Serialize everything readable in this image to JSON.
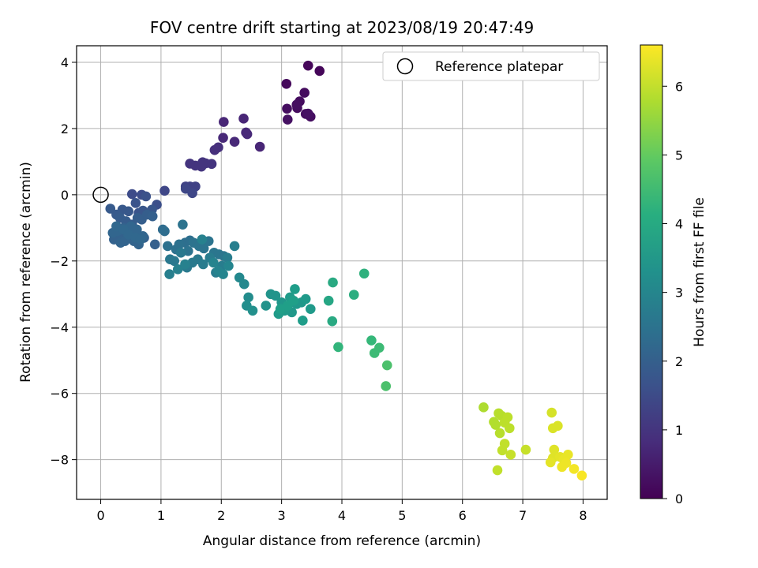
{
  "chart_data": {
    "type": "scatter",
    "title": "FOV centre drift starting at 2023/08/19 20:47:49",
    "xlabel": "Angular distance from reference (arcmin)",
    "ylabel": "Rotation from reference (arcmin)",
    "xlim": [
      -0.4,
      8.4
    ],
    "ylim": [
      -9.2,
      4.5
    ],
    "xticks": [
      "0",
      "1",
      "2",
      "3",
      "4",
      "5",
      "6",
      "7",
      "8"
    ],
    "xtick_values": [
      0,
      1,
      2,
      3,
      4,
      5,
      6,
      7,
      8
    ],
    "yticks": [
      "−8",
      "−6",
      "−4",
      "−2",
      "0",
      "2",
      "4"
    ],
    "ytick_values": [
      -8,
      -6,
      -4,
      -2,
      0,
      2,
      4
    ],
    "grid": true,
    "legend": {
      "position": "upper right",
      "label": "Reference platepar"
    },
    "reference_point": {
      "x": 0,
      "y": 0
    },
    "colorbar": {
      "label": "Hours from first FF file",
      "colormap": "viridis",
      "range": [
        0,
        6.6
      ],
      "ticks": [
        "0",
        "1",
        "2",
        "3",
        "4",
        "5",
        "6"
      ],
      "tick_values": [
        0,
        1,
        2,
        3,
        4,
        5,
        6
      ]
    },
    "series": [
      {
        "x": [
          3.44,
          3.63,
          3.08,
          3.38,
          3.3,
          3.26,
          3.09,
          3.25,
          3.4,
          3.48,
          3.1,
          3.44,
          2.04,
          2.37,
          2.03,
          2.41,
          2.43,
          2.22,
          2.64,
          1.89,
          1.95,
          1.74,
          1.48,
          1.57,
          1.67,
          1.84,
          1.69,
          1.41,
          1.57,
          1.48,
          1.06,
          1.41,
          1.52
        ],
        "y": [
          3.9,
          3.74,
          3.35,
          3.08,
          2.82,
          2.62,
          2.6,
          2.72,
          2.44,
          2.36,
          2.27,
          2.45,
          2.2,
          2.3,
          1.72,
          1.88,
          1.83,
          1.6,
          1.45,
          1.35,
          1.43,
          0.95,
          0.94,
          0.88,
          0.85,
          0.93,
          0.98,
          0.25,
          0.25,
          0.25,
          0.12,
          0.18,
          0.05
        ],
        "c": [
          0.1,
          0.1,
          0.15,
          0.2,
          0.2,
          0.2,
          0.25,
          0.25,
          0.25,
          0.25,
          0.3,
          0.3,
          0.7,
          0.7,
          0.75,
          0.75,
          0.75,
          0.75,
          0.7,
          0.9,
          0.9,
          1.0,
          1.0,
          1.0,
          1.0,
          1.0,
          1.0,
          1.3,
          1.3,
          1.3,
          1.4,
          1.4,
          1.4
        ]
      },
      {
        "x": [
          0.52,
          0.68,
          0.93,
          0.75,
          0.58,
          0.63,
          0.7,
          0.85,
          0.46,
          0.36,
          0.16,
          0.26,
          0.32,
          0.42,
          0.52,
          0.61,
          0.68,
          0.77,
          0.86,
          0.9,
          0.72,
          0.58,
          0.5,
          0.38,
          0.3,
          0.22,
          0.45,
          0.55,
          0.63,
          0.33,
          0.4,
          0.28,
          0.5,
          0.6,
          0.7,
          0.2,
          0.26,
          0.38,
          0.46,
          0.58,
          0.66
        ],
        "y": [
          0.02,
          0.0,
          -0.3,
          -0.05,
          -0.25,
          -0.55,
          -0.48,
          -0.45,
          -0.5,
          -0.45,
          -0.42,
          -0.6,
          -0.7,
          -0.8,
          -0.9,
          -0.7,
          -0.75,
          -0.6,
          -0.65,
          -1.5,
          -1.3,
          -1.2,
          -1.1,
          -1.0,
          -1.2,
          -1.35,
          -1.25,
          -1.4,
          -1.5,
          -1.45,
          -1.4,
          -1.1,
          -0.95,
          -1.05,
          -1.25,
          -1.15,
          -0.95,
          -1.05,
          -1.2,
          -1.3,
          -1.35
        ],
        "c": [
          1.5,
          1.55,
          1.6,
          1.65,
          1.7,
          1.7,
          1.75,
          1.75,
          1.8,
          1.8,
          1.85,
          1.85,
          1.9,
          1.9,
          1.9,
          1.95,
          1.95,
          1.95,
          2.0,
          2.0,
          2.0,
          2.0,
          2.05,
          2.05,
          2.05,
          2.05,
          2.1,
          2.1,
          2.1,
          2.1,
          2.1,
          2.15,
          2.15,
          2.15,
          2.15,
          2.15,
          2.2,
          2.2,
          2.2,
          2.2,
          2.2
        ]
      },
      {
        "x": [
          1.03,
          1.06,
          1.4,
          1.48,
          1.11,
          1.25,
          1.3,
          1.36,
          1.45,
          1.54,
          1.63,
          1.71,
          1.79,
          1.88,
          1.96,
          2.04,
          1.15,
          1.22,
          1.33,
          1.43,
          1.52,
          1.61,
          1.7,
          1.81,
          1.91,
          2.01,
          2.1,
          2.22,
          1.14,
          1.28,
          1.4,
          1.68,
          1.87,
          1.95,
          2.03,
          2.12,
          2.3,
          2.38,
          2.45,
          2.42,
          2.52,
          2.74,
          2.82,
          2.9,
          3.0,
          3.1,
          3.17,
          3.25,
          3.33,
          3.4,
          3.48,
          2.95,
          3.05,
          3.14,
          3.22,
          3.35,
          2.98,
          3.1,
          3.2
        ],
        "y": [
          -1.05,
          -1.1,
          -1.45,
          -1.38,
          -1.55,
          -1.65,
          -1.5,
          -0.9,
          -1.7,
          -1.45,
          -1.55,
          -1.62,
          -1.4,
          -1.75,
          -1.8,
          -1.85,
          -1.95,
          -2.0,
          -1.75,
          -2.2,
          -2.05,
          -1.95,
          -2.1,
          -1.9,
          -2.35,
          -2.15,
          -1.9,
          -1.55,
          -2.4,
          -2.25,
          -2.1,
          -1.35,
          -2.05,
          -2.3,
          -2.4,
          -2.15,
          -2.5,
          -2.7,
          -3.1,
          -3.35,
          -3.5,
          -3.35,
          -3.0,
          -3.05,
          -3.25,
          -3.4,
          -3.55,
          -3.3,
          -3.25,
          -3.15,
          -3.45,
          -3.6,
          -3.5,
          -3.1,
          -2.85,
          -3.8,
          -3.45,
          -3.35,
          -3.2
        ],
        "c": [
          2.3,
          2.35,
          2.4,
          2.4,
          2.45,
          2.45,
          2.45,
          2.5,
          2.5,
          2.5,
          2.55,
          2.55,
          2.55,
          2.6,
          2.6,
          2.6,
          2.65,
          2.65,
          2.65,
          2.7,
          2.7,
          2.7,
          2.75,
          2.75,
          2.75,
          2.8,
          2.8,
          2.85,
          2.85,
          2.9,
          2.9,
          2.9,
          2.95,
          2.95,
          3.0,
          3.0,
          3.1,
          3.1,
          3.2,
          3.25,
          3.3,
          3.35,
          3.4,
          3.4,
          3.45,
          3.45,
          3.5,
          3.5,
          3.5,
          3.55,
          3.55,
          3.6,
          3.6,
          3.6,
          3.65,
          3.65,
          3.7,
          3.7,
          3.7
        ]
      },
      {
        "x": [
          3.78,
          3.85,
          3.84,
          4.2,
          4.37,
          3.94,
          4.49,
          4.54,
          4.62,
          4.75,
          4.73
        ],
        "y": [
          -3.2,
          -2.65,
          -3.82,
          -3.02,
          -2.38,
          -4.6,
          -4.4,
          -4.78,
          -4.62,
          -5.15,
          -5.78
        ],
        "c": [
          3.9,
          4.0,
          4.0,
          4.1,
          4.2,
          4.3,
          4.4,
          4.5,
          4.5,
          4.7,
          4.7
        ]
      },
      {
        "x": [
          6.35,
          6.52,
          6.55,
          6.6,
          6.65,
          6.62,
          6.7,
          6.75,
          6.78,
          6.66,
          6.7,
          6.58,
          6.8,
          7.05
        ],
        "y": [
          -6.42,
          -6.86,
          -6.95,
          -6.6,
          -6.68,
          -7.2,
          -6.88,
          -6.72,
          -7.05,
          -7.72,
          -7.52,
          -8.32,
          -7.85,
          -7.7
        ],
        "c": [
          5.8,
          5.85,
          5.85,
          5.9,
          5.9,
          5.9,
          5.95,
          5.95,
          5.95,
          6.0,
          6.0,
          6.0,
          6.05,
          6.05
        ]
      },
      {
        "x": [
          7.48,
          7.5,
          7.58,
          7.52,
          7.5,
          7.46,
          7.62,
          7.68,
          7.75,
          7.72,
          7.65,
          7.85,
          7.98
        ],
        "y": [
          -6.58,
          -7.05,
          -6.98,
          -7.7,
          -7.95,
          -8.08,
          -7.92,
          -8.0,
          -7.85,
          -8.1,
          -8.22,
          -8.28,
          -8.48
        ],
        "c": [
          6.2,
          6.25,
          6.25,
          6.3,
          6.3,
          6.35,
          6.35,
          6.4,
          6.4,
          6.45,
          6.45,
          6.5,
          6.55
        ]
      }
    ]
  }
}
